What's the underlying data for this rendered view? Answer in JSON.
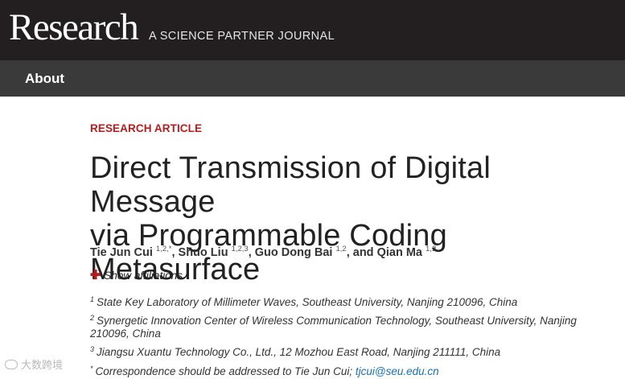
{
  "header": {
    "logo": "Research",
    "tagline": "A SCIENCE PARTNER JOURNAL"
  },
  "nav": {
    "about": "About"
  },
  "article": {
    "type": "RESEARCH ARTICLE",
    "title_line1": "Direct Transmission of Digital Message",
    "title_line2": "via Programmable Coding Metasurface",
    "authors": [
      {
        "name": "Tie Jun Cui",
        "sup": "1,2,*"
      },
      {
        "name": "Shuo Liu",
        "sup": "1,2,3"
      },
      {
        "name": "Guo Dong Bai",
        "sup": "1,2"
      },
      {
        "name": "Qian Ma",
        "sup": "1,2"
      }
    ],
    "author_sep_comma": ",",
    "author_sep_and": ", and",
    "show_affiliations": "Show affiliations",
    "affiliations": [
      {
        "num": "1",
        "text": "State Key Laboratory of Millimeter Waves, Southeast University, Nanjing 210096, China"
      },
      {
        "num": "2",
        "text": "Synergetic Innovation Center of Wireless Communication Technology, Southeast University, Nanjing 210096, China"
      },
      {
        "num": "3",
        "text": "Jiangsu Xuantu Technology Co., Ltd., 12 Mozhou East Road, Nanjing 211111, China"
      }
    ],
    "correspondence": {
      "mark": "*",
      "text": "Correspondence should be addressed to Tie Jun Cui;",
      "email": "tjcui@seu.edu.cn"
    }
  },
  "watermark": {
    "text": "大数跨境"
  },
  "colors": {
    "header_bg": "#231f20",
    "nav_bg": "#3a3a3a",
    "accent_red": "#b71c1c",
    "link_blue": "#1a6fb5"
  }
}
